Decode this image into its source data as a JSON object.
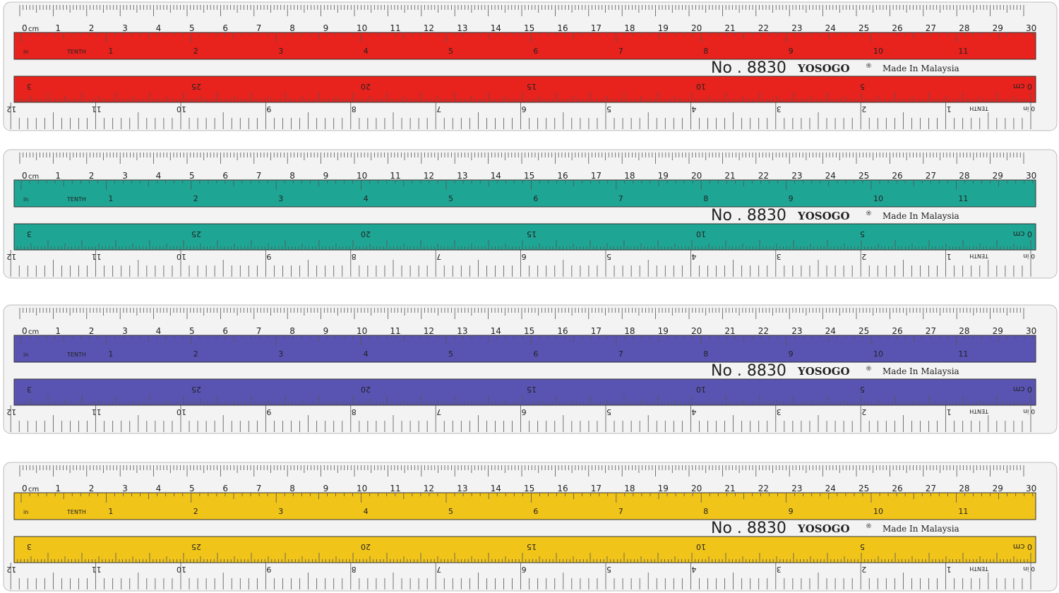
{
  "scale": {
    "cm_labels": [
      "0",
      "1",
      "2",
      "3",
      "4",
      "5",
      "6",
      "7",
      "8",
      "9",
      "10",
      "11",
      "12",
      "13",
      "14",
      "15",
      "16",
      "17",
      "18",
      "19",
      "20",
      "21",
      "22",
      "23",
      "24",
      "25",
      "26",
      "27",
      "28",
      "29",
      "30"
    ],
    "cm_unit": "cm",
    "in_unit": "in",
    "tenth": "TENTH",
    "inch_labels": [
      "1",
      "2",
      "3",
      "4",
      "5",
      "6",
      "7",
      "8",
      "9",
      "10",
      "11"
    ],
    "mirrored_labels": [
      "3",
      "25",
      "20",
      "15",
      "10",
      "5",
      "0 cm"
    ],
    "bottom_labels": [
      "12",
      "11",
      "10",
      "9",
      "8",
      "7",
      "6",
      "5",
      "4",
      "3",
      "2",
      "1"
    ],
    "bottom_tenth": "TENTH",
    "bottom_zero": "0 in"
  },
  "rulers": [
    {
      "color": "#e8221d",
      "model": "No . 8830",
      "brand": "YOSOGO",
      "brand_mark": "®",
      "origin": "Made In Malaysia"
    },
    {
      "color": "#1ea594",
      "model": "No . 8830",
      "brand": "YOSOGO",
      "brand_mark": "®",
      "origin": "Made In Malaysia"
    },
    {
      "color": "#5954b2",
      "model": "No . 8830",
      "brand": "YOSOGO",
      "brand_mark": "®",
      "origin": "Made In Malaysia"
    },
    {
      "color": "#f1c41a",
      "model": "No . 8830",
      "brand": "YOSOGO",
      "brand_mark": "®",
      "origin": "Made In Malaysia"
    }
  ]
}
